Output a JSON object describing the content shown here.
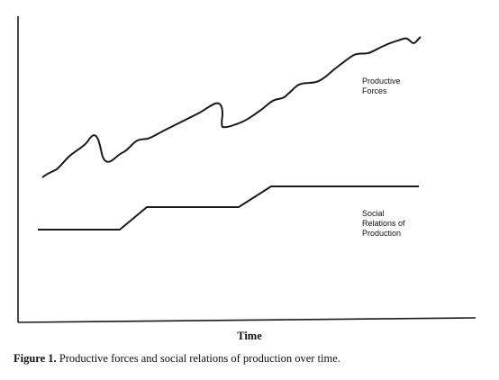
{
  "axis_title": "Time",
  "caption": {
    "label": "Figure 1.",
    "text": "Productive forces and social relations of production over time."
  },
  "curves": {
    "productive_forces": {
      "label_lines": [
        "Productive",
        "Forces"
      ],
      "stroke": "#1a1a1a"
    },
    "social_relations": {
      "label_lines": [
        "Social",
        "Relations of",
        "Production"
      ],
      "stroke": "#1a1a1a"
    }
  },
  "axis_color": "#1a1a1a"
}
